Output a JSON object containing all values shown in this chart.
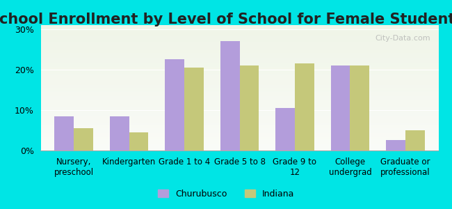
{
  "title": "School Enrollment by Level of School for Female Students",
  "categories": [
    "Nursery,\npreschool",
    "Kindergarten",
    "Grade 1 to 4",
    "Grade 5 to 8",
    "Grade 9 to\n12",
    "College\nundergrad",
    "Graduate or\nprofessional"
  ],
  "churubusco": [
    8.5,
    8.5,
    22.5,
    27.0,
    10.5,
    21.0,
    2.5
  ],
  "indiana": [
    5.5,
    4.5,
    20.5,
    21.0,
    21.5,
    21.0,
    5.0
  ],
  "churubusco_color": "#b39ddb",
  "indiana_color": "#c5c87a",
  "background_outer": "#00e5e5",
  "background_inner_top": "#f0f5e8",
  "background_inner_bottom": "#ffffff",
  "ylim": [
    0,
    31
  ],
  "yticks": [
    0,
    10,
    20,
    30
  ],
  "ytick_labels": [
    "0%",
    "10%",
    "20%",
    "30%"
  ],
  "title_fontsize": 15,
  "legend_labels": [
    "Churubusco",
    "Indiana"
  ],
  "bar_width": 0.35
}
